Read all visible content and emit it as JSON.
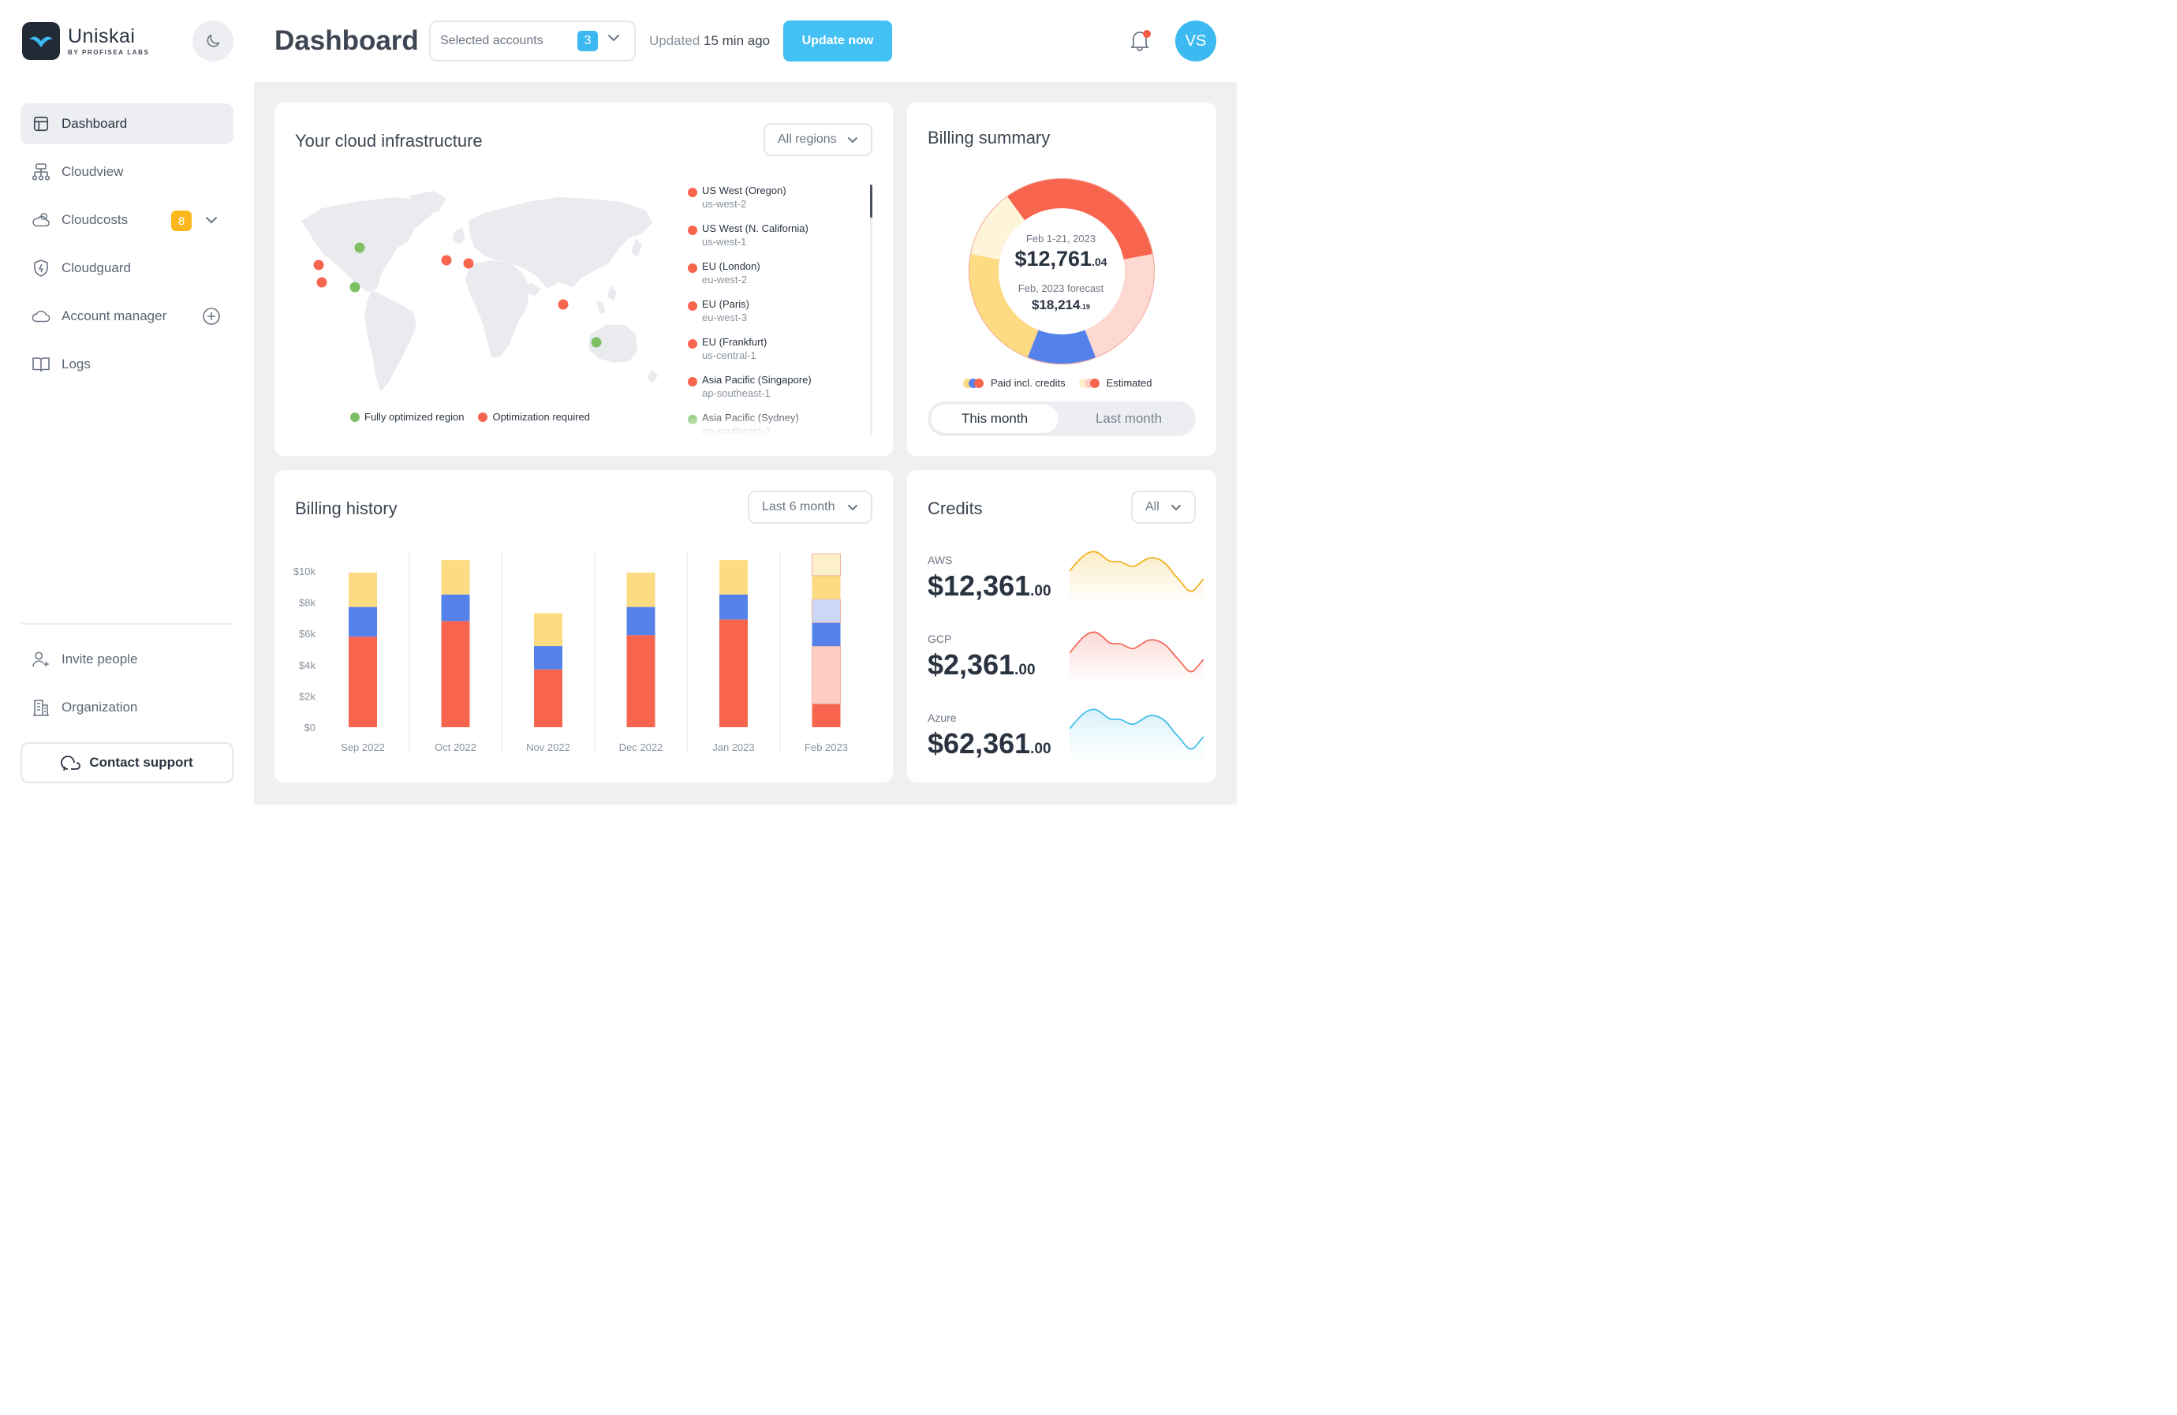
{
  "brand": {
    "name": "Uniskai",
    "sub": "BY PROFISEA LABS"
  },
  "sidebar": {
    "items": [
      {
        "label": "Dashboard"
      },
      {
        "label": "Cloudview"
      },
      {
        "label": "Cloudcosts",
        "badge": "8"
      },
      {
        "label": "Cloudguard"
      },
      {
        "label": "Account manager"
      },
      {
        "label": "Logs"
      }
    ],
    "bottom": [
      {
        "label": "Invite people"
      },
      {
        "label": "Organization"
      }
    ],
    "contact_label": "Contact support"
  },
  "header": {
    "title": "Dashboard",
    "accounts_label": "Selected accounts",
    "accounts_count": "3",
    "updated_prefix": "Updated",
    "updated_time": "15 min ago",
    "update_btn": "Update now",
    "avatar": "VS"
  },
  "infra": {
    "title": "Your cloud infrastructure",
    "filter": "All regions",
    "legend_ok": "Fully optimized region",
    "legend_req": "Optimization required",
    "regions": [
      {
        "name": "US West (Oregon)",
        "code": "us-west-2",
        "status": "required"
      },
      {
        "name": "US West (N. California)",
        "code": "us-west-1",
        "status": "required"
      },
      {
        "name": "EU (London)",
        "code": "eu-west-2",
        "status": "required"
      },
      {
        "name": "EU (Paris)",
        "code": "eu-west-3",
        "status": "required"
      },
      {
        "name": "EU (Frankfurt)",
        "code": "us-central-1",
        "status": "required"
      },
      {
        "name": "Asia Pacific (Singapore)",
        "code": "ap-southeast-1",
        "status": "required"
      },
      {
        "name": "Asia Pacific (Sydney)",
        "code": "ap-southeast-2",
        "status": "ok"
      }
    ]
  },
  "billing_summary": {
    "title": "Billing summary",
    "period": "Feb 1-21, 2023",
    "amount_main": "$12,761",
    "amount_cents": ".04",
    "forecast_label": "Feb, 2023 forecast",
    "forecast_main": "$18,214",
    "forecast_cents": ".19",
    "legend_paid": "Paid incl. credits",
    "legend_est": "Estimated",
    "tab_this": "This month",
    "tab_last": "Last month"
  },
  "billing_history": {
    "title": "Billing history",
    "filter": "Last 6 month"
  },
  "credits": {
    "title": "Credits",
    "filter": "All",
    "items": [
      {
        "name": "AWS",
        "main": "$12,361",
        "cents": ".00",
        "color": "#f0b21f"
      },
      {
        "name": "GCP",
        "main": "$2,361",
        "cents": ".00",
        "color": "#f26b5b"
      },
      {
        "name": "Azure",
        "main": "$62,361",
        "cents": ".00",
        "color": "#45bfe9"
      }
    ]
  },
  "colors": {
    "red": "#f8654f",
    "blue": "#5582ea",
    "yellow": "#fddb82",
    "green": "#7cc063",
    "accent": "#43c1f4"
  },
  "chart_data": {
    "type": "bar",
    "categories": [
      "Sep 2022",
      "Oct 2022",
      "Nov 2022",
      "Dec 2022",
      "Jan 2023",
      "Feb 2023"
    ],
    "yticks": [
      "$0",
      "$2k",
      "$4k",
      "$6k",
      "$8k",
      "$10k"
    ],
    "ylim": [
      0,
      10000
    ],
    "series": [
      {
        "values": [
          5800,
          6800,
          3700,
          5900,
          6900,
          1500
        ],
        "color": "#f8654f"
      },
      {
        "values": [
          1900,
          1700,
          1500,
          1800,
          1600,
          1500
        ],
        "color": "#5582ea"
      },
      {
        "values": [
          2200,
          2200,
          2100,
          2200,
          2200,
          1500
        ],
        "color": "#fddb82"
      }
    ],
    "estimated": [
      {
        "values": [
          0,
          0,
          0,
          0,
          0,
          3700
        ],
        "color": "#fdcdc5"
      },
      {
        "values": [
          0,
          0,
          0,
          0,
          0,
          1500
        ],
        "color": "#cbd7f6"
      },
      {
        "values": [
          0,
          0,
          0,
          0,
          0,
          1400
        ],
        "color": "#fef0c8"
      }
    ],
    "donut": {
      "segments": [
        {
          "value": 22,
          "color": "#f8654f"
        },
        {
          "value": 22,
          "color": "#fdd9d2"
        },
        {
          "value": 12,
          "color": "#5582ea"
        },
        {
          "value": 22,
          "color": "#fddb82"
        },
        {
          "value": 12,
          "color": "#fef4da"
        },
        {
          "value": 10,
          "color": "#f8654f"
        }
      ]
    }
  }
}
